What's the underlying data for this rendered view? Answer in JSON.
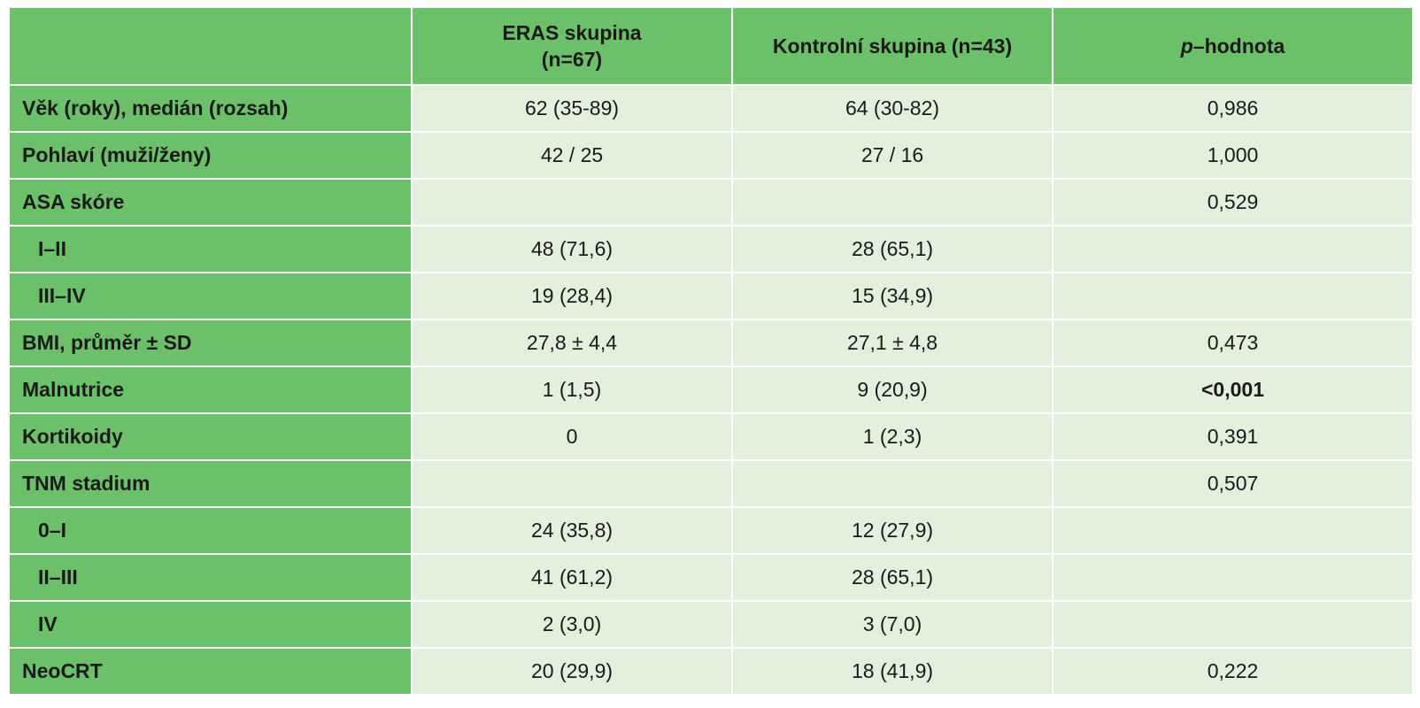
{
  "table": {
    "header": {
      "corner": "",
      "col1_line1": "ERAS skupina",
      "col1_line2": "(n=67)",
      "col2": "Kontrolní skupina (n=43)",
      "col3_italic": "p",
      "col3_rest": "–hodnota"
    },
    "rows": [
      {
        "label": "Věk (roky), medián (rozsah)",
        "eras": "62 (35-89)",
        "control": "64 (30-82)",
        "p": "0,986"
      },
      {
        "label": "Pohlaví (muži/ženy)",
        "eras": "42 / 25",
        "control": "27 / 16",
        "p": "1,000"
      },
      {
        "label": "ASA skóre",
        "eras": "",
        "control": "",
        "p": "0,529"
      },
      {
        "label": "I–II",
        "eras": "48 (71,6)",
        "control": "28 (65,1)",
        "p": ""
      },
      {
        "label": "III–IV",
        "eras": "19 (28,4)",
        "control": "15 (34,9)",
        "p": ""
      },
      {
        "label": "BMI, průměr ± SD",
        "eras": "27,8 ± 4,4",
        "control": "27,1 ± 4,8",
        "p": "0,473"
      },
      {
        "label": "Malnutrice",
        "eras": "1 (1,5)",
        "control": "9 (20,9)",
        "p": "<0,001"
      },
      {
        "label": "Kortikoidy",
        "eras": "0",
        "control": "1 (2,3)",
        "p": "0,391"
      },
      {
        "label": "TNM stadium",
        "eras": "",
        "control": "",
        "p": "0,507"
      },
      {
        "label": "0–I",
        "eras": "24 (35,8)",
        "control": "12 (27,9)",
        "p": ""
      },
      {
        "label": "II–III",
        "eras": "41 (61,2)",
        "control": "28 (65,1)",
        "p": ""
      },
      {
        "label": "IV",
        "eras": "2 (3,0)",
        "control": "3 (7,0)",
        "p": ""
      },
      {
        "label": "NeoCRT",
        "eras": "20 (29,9)",
        "control": "18 (41,9)",
        "p": "0,222"
      }
    ],
    "colors": {
      "header_green": "#6cc06a",
      "cell_light": "#e3f0de",
      "border": "#ffffff"
    }
  }
}
